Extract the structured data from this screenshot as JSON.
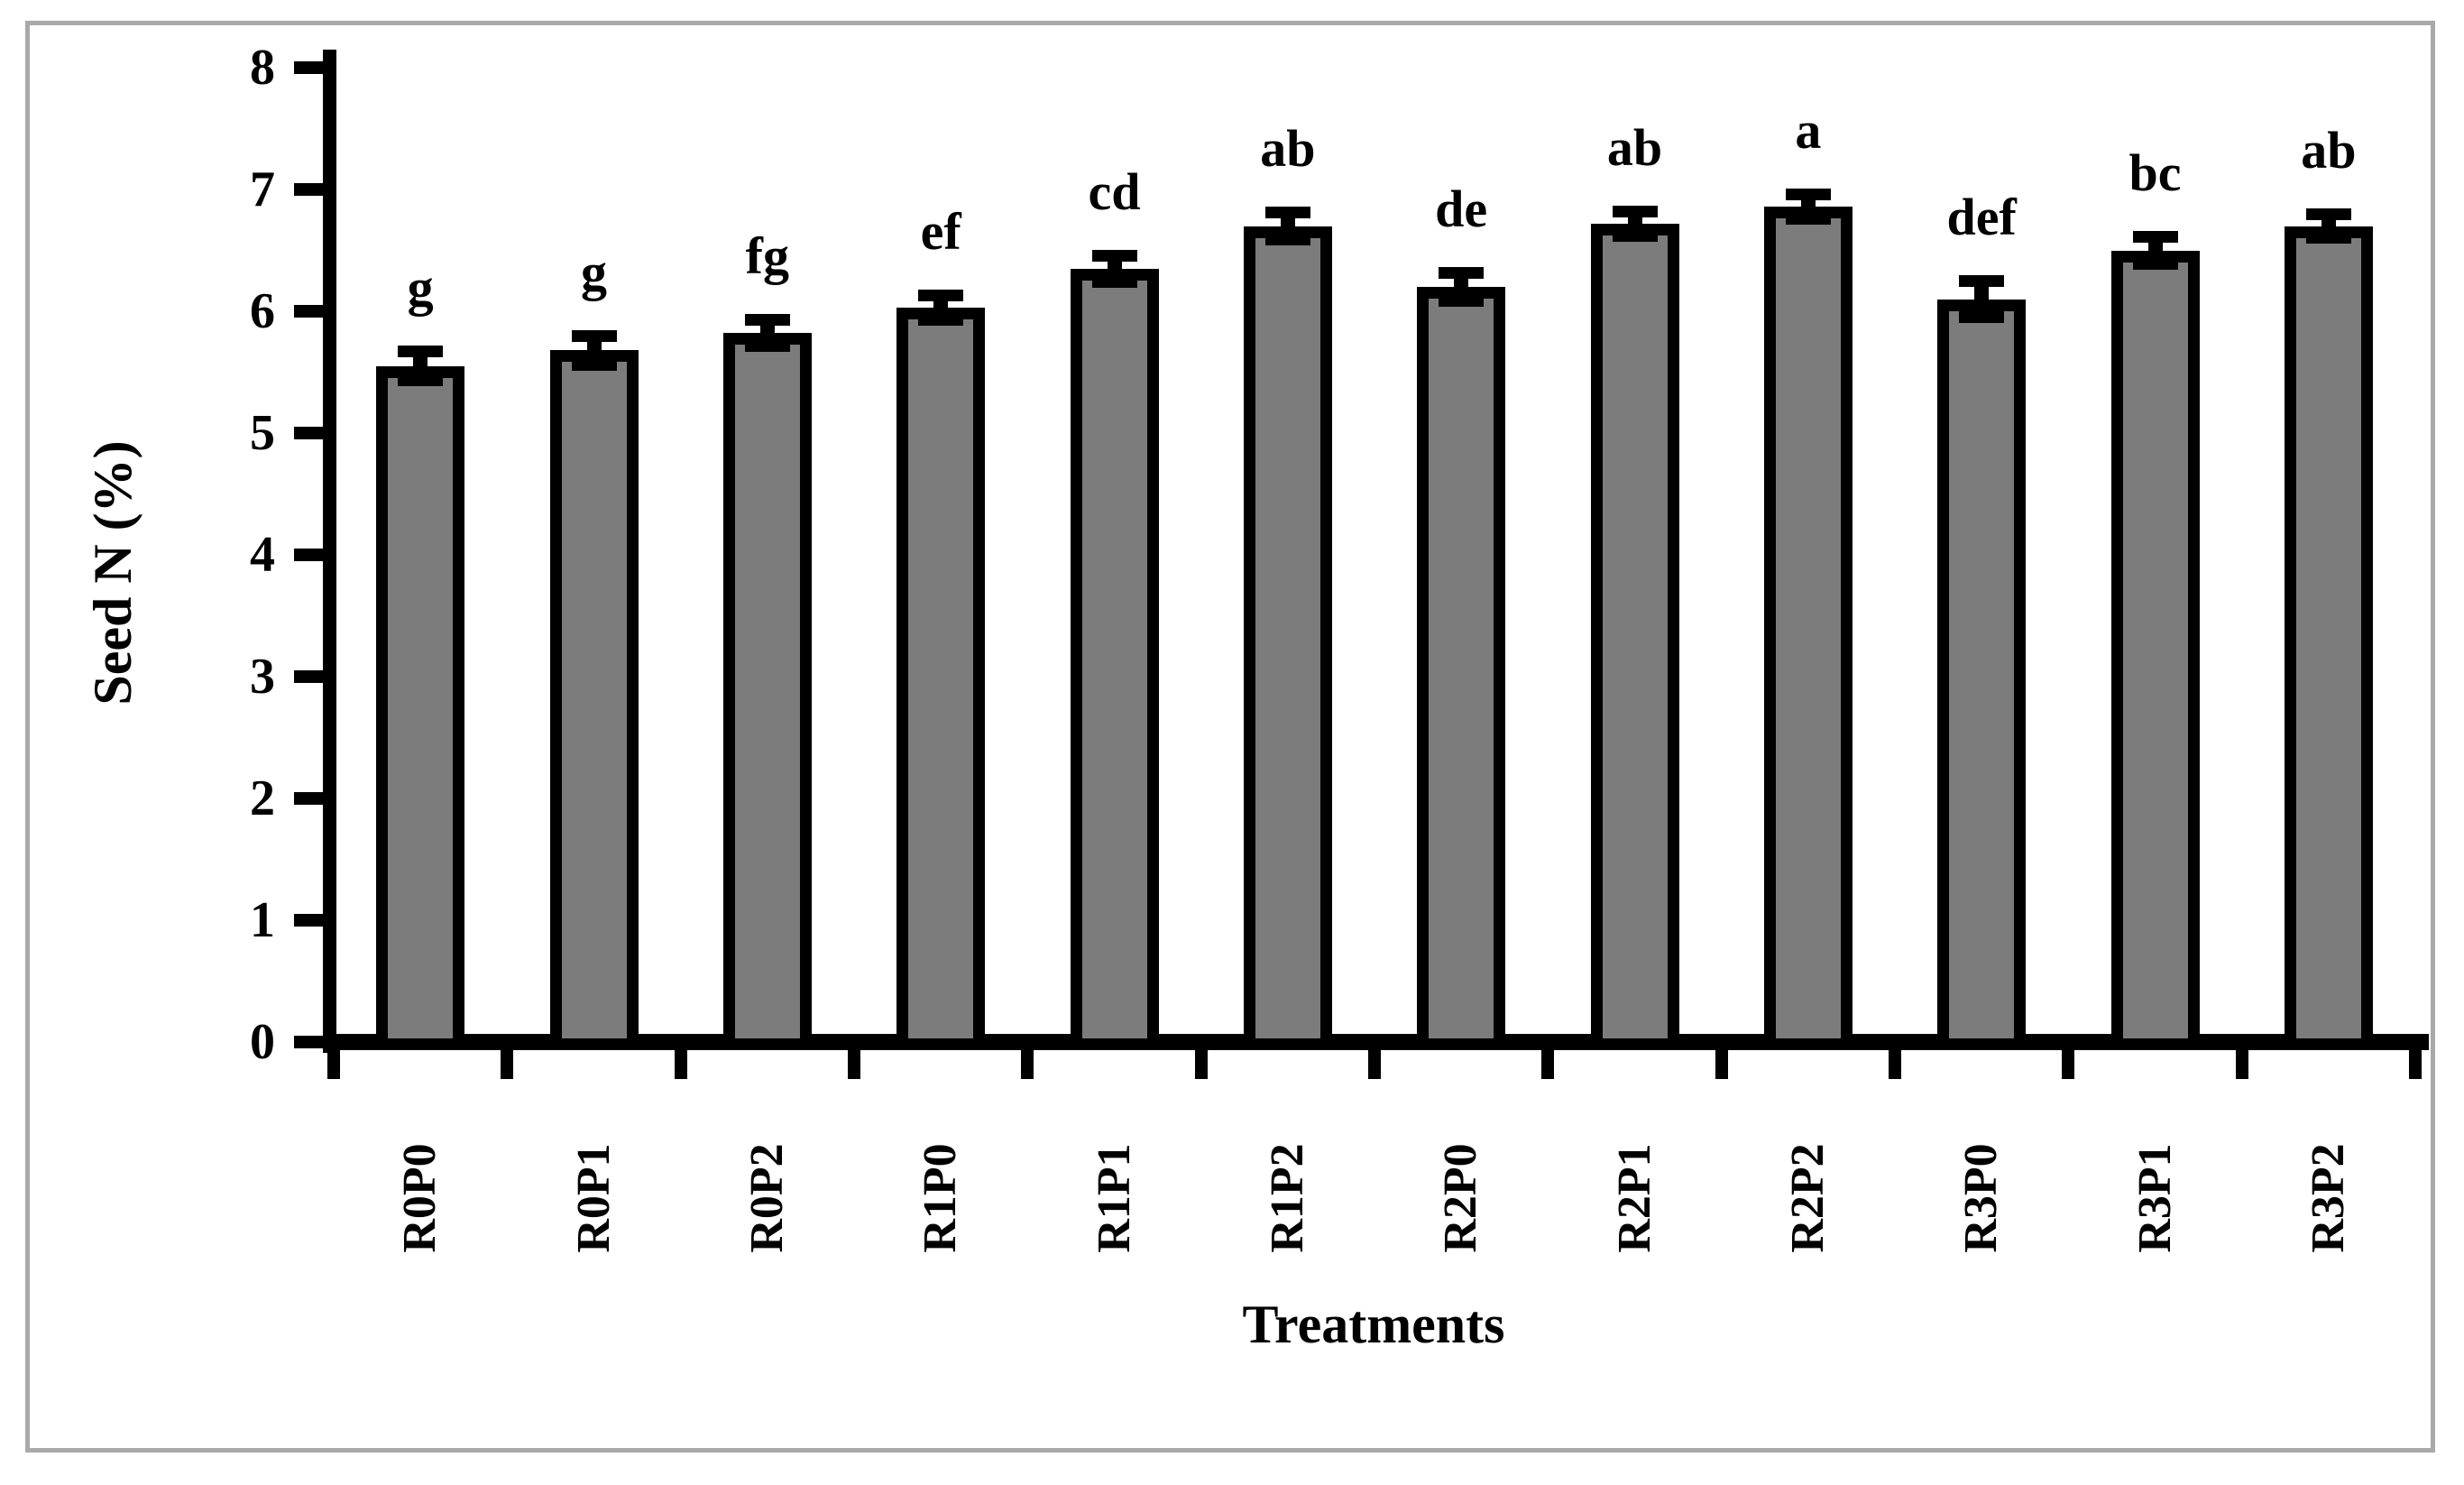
{
  "chart_data": {
    "type": "bar",
    "title": "",
    "xlabel": "Treatments",
    "ylabel": "Seed N (%)",
    "ylim": [
      0,
      8
    ],
    "yticks": [
      0,
      1,
      2,
      3,
      4,
      5,
      6,
      7,
      8
    ],
    "grid": false,
    "legend": "none",
    "categories": [
      "R0P0",
      "R0P1",
      "R0P2",
      "R1P0",
      "R1P1",
      "R1P2",
      "R2P0",
      "R2P1",
      "R2P2",
      "R3P0",
      "R3P1",
      "R3P2"
    ],
    "values": [
      5.55,
      5.68,
      5.82,
      6.03,
      6.35,
      6.7,
      6.2,
      6.72,
      6.86,
      6.1,
      6.5,
      6.7
    ],
    "error_bars": [
      0.07,
      0.07,
      0.06,
      0.05,
      0.06,
      0.06,
      0.07,
      0.05,
      0.05,
      0.1,
      0.06,
      0.05
    ],
    "significance_letters": [
      "g",
      "g",
      "fg",
      "ef",
      "cd",
      "ab",
      "de",
      "ab",
      "a",
      "def",
      "bc",
      "ab"
    ],
    "colors": {
      "bar_fill": "#7c7c7c",
      "bar_outline": "#000000",
      "axis": "#000000",
      "frame_border": "#a9a9a9",
      "background": "#ffffff"
    }
  }
}
